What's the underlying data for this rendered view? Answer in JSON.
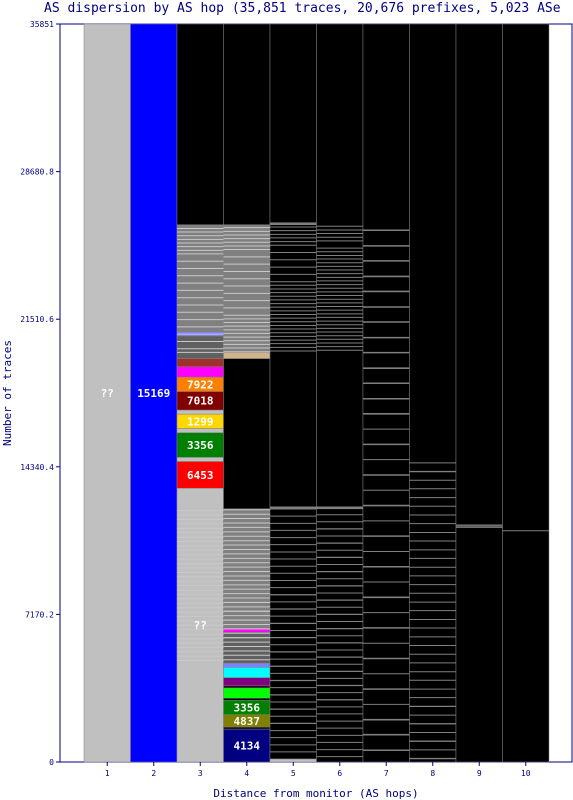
{
  "chart_data": {
    "type": "bar",
    "title": "AS dispersion by AS hop (35,851 traces, 20,676 prefixes, 5,023 ASe",
    "xlabel": "Distance from monitor (AS hops)",
    "ylabel": "Number of traces",
    "ylim": [
      0,
      35851
    ],
    "y_ticks": [
      "0",
      "7170.2",
      "14340.4",
      "21510.6",
      "28680.8",
      "35851"
    ],
    "categories": [
      "1",
      "2",
      "3",
      "4",
      "5",
      "6",
      "7",
      "8",
      "9",
      "10"
    ],
    "colors": {
      "unknown": "#c0c0c0",
      "minor": "#808080",
      "unreached": "#000000",
      "as15169": "#0000ff",
      "as7922": "#ff8000",
      "as7018": "#800000",
      "as1299": "#ffd700",
      "as3356": "#008000",
      "as6453": "#ff0000",
      "as4837": "#808000",
      "as4134": "#000080"
    },
    "bars": [
      {
        "x": "1",
        "segments": [
          {
            "label": "??",
            "color": "#c0c0c0",
            "from": 0,
            "to": 35851
          }
        ]
      },
      {
        "x": "2",
        "segments": [
          {
            "label": "15169",
            "color": "#0000ff",
            "from": 0,
            "to": 35851
          }
        ]
      },
      {
        "x": "3",
        "segments": [
          {
            "label": "??",
            "color": "#c0c0c0",
            "from": 0,
            "to": 13300
          },
          {
            "label": "6453",
            "color": "#ff0000",
            "from": 13300,
            "to": 14600
          },
          {
            "label": "",
            "color": "#c0c0c0",
            "from": 14600,
            "to": 14800
          },
          {
            "label": "3356",
            "color": "#008000",
            "from": 14800,
            "to": 16000
          },
          {
            "label": "",
            "color": "#c0c0c0",
            "from": 16000,
            "to": 16200
          },
          {
            "label": "1299",
            "color": "#ffd700",
            "from": 16200,
            "to": 16900
          },
          {
            "label": "",
            "color": "#c0c0c0",
            "from": 16900,
            "to": 17100
          },
          {
            "label": "7018",
            "color": "#800000",
            "from": 17100,
            "to": 18000
          },
          {
            "label": "7922",
            "color": "#ff8000",
            "from": 18000,
            "to": 18700
          },
          {
            "label": "",
            "color": "#ff00ff",
            "from": 18700,
            "to": 19200
          },
          {
            "label": "",
            "color": "#a0302a",
            "from": 19200,
            "to": 19600
          },
          {
            "label": "",
            "color": "#606060",
            "from": 19600,
            "to": 20700
          },
          {
            "label": "",
            "color": "#8080ff",
            "from": 20700,
            "to": 20900
          },
          {
            "label": "",
            "color": "#808080",
            "from": 20900,
            "to": 26100
          },
          {
            "label": "",
            "color": "#000000",
            "from": 26100,
            "to": 35851
          }
        ]
      },
      {
        "x": "4",
        "segments": [
          {
            "label": "4134",
            "color": "#000080",
            "from": 0,
            "to": 1600
          },
          {
            "label": "",
            "color": "#000000",
            "from": 1600,
            "to": 1700
          },
          {
            "label": "4837",
            "color": "#808000",
            "from": 1700,
            "to": 2300
          },
          {
            "label": "3356",
            "color": "#008000",
            "from": 2300,
            "to": 3000
          },
          {
            "label": "",
            "color": "#000000",
            "from": 3000,
            "to": 3100
          },
          {
            "label": "",
            "color": "#00ff00",
            "from": 3100,
            "to": 3600
          },
          {
            "label": "",
            "color": "#000000",
            "from": 3600,
            "to": 3700
          },
          {
            "label": "",
            "color": "#800080",
            "from": 3700,
            "to": 4100
          },
          {
            "label": "",
            "color": "#00ffff",
            "from": 4100,
            "to": 4600
          },
          {
            "label": "",
            "color": "#8080ff",
            "from": 4600,
            "to": 4800
          },
          {
            "label": "",
            "color": "#606060",
            "from": 4800,
            "to": 6300
          },
          {
            "label": "",
            "color": "#ff00ff",
            "from": 6300,
            "to": 6450
          },
          {
            "label": "",
            "color": "#808080",
            "from": 6450,
            "to": 12300
          },
          {
            "label": "",
            "color": "#000000",
            "from": 12300,
            "to": 19600
          },
          {
            "label": "",
            "color": "#d2b48c",
            "from": 19600,
            "to": 19900
          },
          {
            "label": "",
            "color": "#808080",
            "from": 19900,
            "to": 26100
          },
          {
            "label": "",
            "color": "#000000",
            "from": 26100,
            "to": 35851
          }
        ]
      },
      {
        "x": "5",
        "segments": [
          {
            "label": "",
            "color": "#c0c0c0",
            "from": 0,
            "to": 150
          },
          {
            "label": "",
            "color": "#000000",
            "from": 150,
            "to": 12300
          },
          {
            "label": "",
            "color": "#808080",
            "from": 12300,
            "to": 12400
          },
          {
            "label": "",
            "color": "#000000",
            "from": 12400,
            "to": 26100
          },
          {
            "label": "",
            "color": "#808080",
            "from": 26100,
            "to": 26200
          },
          {
            "label": "",
            "color": "#000000",
            "from": 26200,
            "to": 35851
          }
        ]
      },
      {
        "x": "6",
        "segments": [
          {
            "label": "",
            "color": "#000000",
            "from": 0,
            "to": 12300
          },
          {
            "label": "",
            "color": "#808080",
            "from": 12300,
            "to": 12400
          },
          {
            "label": "",
            "color": "#000000",
            "from": 12400,
            "to": 35851
          }
        ]
      },
      {
        "x": "7",
        "segments": [
          {
            "label": "",
            "color": "#000000",
            "from": 0,
            "to": 35851
          }
        ]
      },
      {
        "x": "8",
        "segments": [
          {
            "label": "",
            "color": "#000000",
            "from": 0,
            "to": 35851
          }
        ]
      },
      {
        "x": "9",
        "segments": [
          {
            "label": "",
            "color": "#000000",
            "from": 0,
            "to": 35851
          }
        ]
      },
      {
        "x": "10",
        "segments": [
          {
            "label": "",
            "color": "#000000",
            "from": 0,
            "to": 35851
          }
        ]
      }
    ]
  }
}
